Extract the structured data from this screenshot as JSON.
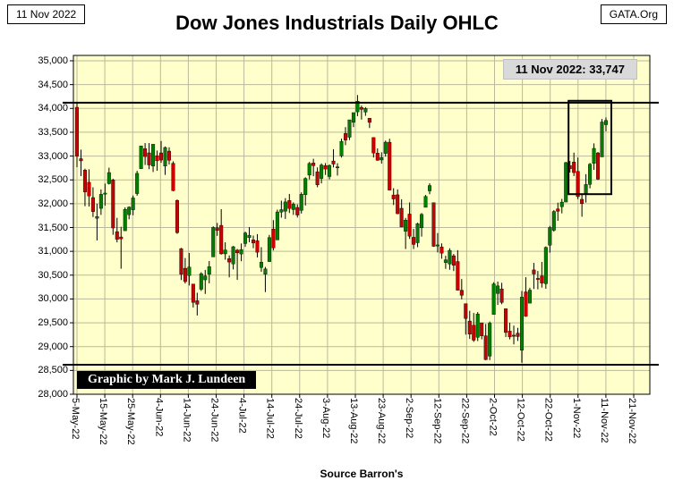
{
  "header": {
    "date_box": "11 Nov 2022",
    "site_box": "GATA.Org"
  },
  "title": "Dow Jones Industrials Daily OHLC",
  "annotation": "11 Nov 2022: 33,747",
  "credit": "Graphic by Mark J. Lundeen",
  "source": "Source Barron's",
  "chart_data": {
    "type": "ohlc-candlestick",
    "title": "Dow Jones Industrials Daily OHLC",
    "ylim": [
      28000,
      35000
    ],
    "y_tick_step": 500,
    "grid": true,
    "plot_bg": "#FFFFCC",
    "up_color": "#008000",
    "down_color": "#CC0000",
    "last_value": 33747,
    "horizontal_lines": [
      34120,
      28620
    ],
    "highlight_box": {
      "start_index": 124,
      "end_index": 132,
      "start_label": "1-Nov-22",
      "end_label": "11-Nov-22",
      "price_low": 32200,
      "price_high": 34160
    },
    "y_tick_labels": [
      "35,000",
      "34,500",
      "34,000",
      "33,500",
      "33,000",
      "32,500",
      "32,000",
      "31,500",
      "31,000",
      "30,500",
      "30,000",
      "29,500",
      "29,000",
      "28,500",
      "28,000"
    ],
    "x_tick_labels": [
      "5-May-22",
      "15-May-22",
      "25-May-22",
      "4-Jun-22",
      "14-Jun-22",
      "24-Jun-22",
      "4-Jul-22",
      "14-Jul-22",
      "24-Jul-22",
      "3-Aug-22",
      "13-Aug-22",
      "23-Aug-22",
      "2-Sep-22",
      "12-Sep-22",
      "22-Sep-22",
      "2-Oct-22",
      "12-Oct-22",
      "22-Oct-22",
      "1-Nov-22",
      "11-Nov-22",
      "21-Nov-22"
    ],
    "ohlc": [
      [
        "5-May-22",
        34024,
        34118,
        32766,
        32998
      ],
      [
        "6-May-22",
        32945,
        33135,
        32580,
        32899
      ],
      [
        "9-May-22",
        32706,
        32735,
        31947,
        32246
      ],
      [
        "10-May-22",
        32450,
        32722,
        31940,
        32161
      ],
      [
        "11-May-22",
        32129,
        32344,
        31720,
        31834
      ],
      [
        "12-May-22",
        31694,
        32000,
        31228,
        31730
      ],
      [
        "13-May-22",
        31902,
        32300,
        31766,
        32197
      ],
      [
        "16-May-22",
        32207,
        32422,
        31959,
        32223
      ],
      [
        "17-May-22",
        32421,
        32757,
        32404,
        32654
      ],
      [
        "18-May-22",
        32500,
        32525,
        31347,
        31490
      ],
      [
        "19-May-22",
        31414,
        31704,
        31188,
        31253
      ],
      [
        "20-May-22",
        31302,
        31516,
        30635,
        31262
      ],
      [
        "23-May-22",
        31432,
        31923,
        31432,
        31880
      ],
      [
        "24-May-22",
        31769,
        31944,
        31673,
        31929
      ],
      [
        "25-May-22",
        31873,
        32172,
        31757,
        32120
      ],
      [
        "26-May-22",
        32212,
        32690,
        32168,
        32637
      ],
      [
        "27-May-22",
        32735,
        33213,
        32735,
        33213
      ],
      [
        "31-May-22",
        33155,
        33272,
        32813,
        32990
      ],
      [
        "1-Jun-22",
        33067,
        33273,
        32724,
        32813
      ],
      [
        "2-Jun-22",
        32790,
        33250,
        32665,
        33248
      ],
      [
        "3-Jun-22",
        33008,
        33115,
        32691,
        32900
      ],
      [
        "6-Jun-22",
        33066,
        33317,
        32859,
        32916
      ],
      [
        "7-Jun-22",
        32790,
        33200,
        32605,
        33180
      ],
      [
        "8-Jun-22",
        33104,
        33185,
        32822,
        32911
      ],
      [
        "9-Jun-22",
        32848,
        32889,
        32260,
        32273
      ],
      [
        "10-Jun-22",
        32069,
        32089,
        31367,
        31393
      ],
      [
        "13-Jun-22",
        31057,
        31071,
        30397,
        30517
      ],
      [
        "14-Jun-22",
        30645,
        30860,
        30324,
        30365
      ],
      [
        "15-Jun-22",
        30492,
        30966,
        30283,
        30669
      ],
      [
        "16-Jun-22",
        30314,
        30314,
        29821,
        29927
      ],
      [
        "17-Jun-22",
        29964,
        30131,
        29653,
        29889
      ],
      [
        "21-Jun-22",
        30204,
        30562,
        30168,
        30530
      ],
      [
        "22-Jun-22",
        30402,
        30610,
        30105,
        30483
      ],
      [
        "23-Jun-22",
        30520,
        30797,
        30328,
        30677
      ],
      [
        "24-Jun-22",
        30883,
        31525,
        30883,
        31501
      ],
      [
        "27-Jun-22",
        31494,
        31596,
        31325,
        31438
      ],
      [
        "28-Jun-22",
        31545,
        31885,
        30932,
        30947
      ],
      [
        "29-Jun-22",
        30947,
        31189,
        30825,
        31029
      ],
      [
        "30-Jun-22",
        30848,
        30915,
        30454,
        30775
      ],
      [
        "1-Jul-22",
        30736,
        31112,
        30620,
        31097
      ],
      [
        "5-Jul-22",
        31024,
        31051,
        30401,
        30968
      ],
      [
        "6-Jul-22",
        30944,
        31165,
        30792,
        31038
      ],
      [
        "7-Jul-22",
        31164,
        31413,
        31094,
        31385
      ],
      [
        "8-Jul-22",
        31287,
        31508,
        31191,
        31338
      ],
      [
        "11-Jul-22",
        31241,
        31331,
        31066,
        31174
      ],
      [
        "12-Jul-22",
        31222,
        31361,
        30872,
        30981
      ],
      [
        "13-Jul-22",
        30661,
        31087,
        30570,
        30773
      ],
      [
        "14-Jul-22",
        30518,
        30672,
        30144,
        30630
      ],
      [
        "15-Jul-22",
        30784,
        31345,
        30784,
        31288
      ],
      [
        "18-Jul-22",
        31468,
        31655,
        31018,
        31072
      ],
      [
        "19-Jul-22",
        31239,
        31876,
        31239,
        31827
      ],
      [
        "20-Jul-22",
        31824,
        32064,
        31706,
        31875
      ],
      [
        "21-Jul-22",
        31844,
        32116,
        31680,
        32037
      ],
      [
        "22-Jul-22",
        32068,
        32205,
        31805,
        31899
      ],
      [
        "25-Jul-22",
        31876,
        32027,
        31765,
        31990
      ],
      [
        "26-Jul-22",
        31922,
        31987,
        31709,
        31762
      ],
      [
        "27-Jul-22",
        31860,
        32238,
        31794,
        32198
      ],
      [
        "28-Jul-22",
        32188,
        32554,
        31961,
        32530
      ],
      [
        "29-Jul-22",
        32600,
        32876,
        32510,
        32845
      ],
      [
        "1-Aug-22",
        32854,
        32943,
        32578,
        32798
      ],
      [
        "2-Aug-22",
        32671,
        32762,
        32346,
        32396
      ],
      [
        "3-Aug-22",
        32530,
        32847,
        32426,
        32812
      ],
      [
        "4-Aug-22",
        32800,
        32853,
        32604,
        32727
      ],
      [
        "5-Aug-22",
        32570,
        32823,
        32511,
        32803
      ],
      [
        "8-Aug-22",
        32897,
        33144,
        32761,
        32832
      ],
      [
        "9-Aug-22",
        32763,
        32851,
        32590,
        32774
      ],
      [
        "10-Aug-22",
        33004,
        33364,
        32969,
        33309
      ],
      [
        "11-Aug-22",
        33474,
        33608,
        33229,
        33336
      ],
      [
        "12-Aug-22",
        33395,
        33761,
        33336,
        33761
      ],
      [
        "15-Aug-22",
        33708,
        33912,
        33607,
        33912
      ],
      [
        "16-Aug-22",
        33928,
        34281,
        33838,
        34152
      ],
      [
        "17-Aug-22",
        34021,
        34060,
        33766,
        33980
      ],
      [
        "18-Aug-22",
        33924,
        34028,
        33845,
        33999
      ],
      [
        "19-Aug-22",
        33796,
        33796,
        33589,
        33707
      ],
      [
        "22-Aug-22",
        33389,
        33389,
        32969,
        33064
      ],
      [
        "23-Aug-22",
        33062,
        33162,
        32902,
        32910
      ],
      [
        "24-Aug-22",
        32918,
        33079,
        32842,
        32969
      ],
      [
        "25-Aug-22",
        33056,
        33324,
        32988,
        33292
      ],
      [
        "26-Aug-22",
        33291,
        33364,
        32283,
        32283
      ],
      [
        "29-Aug-22",
        32183,
        32325,
        31972,
        32099
      ],
      [
        "30-Aug-22",
        32187,
        32301,
        31780,
        31790
      ],
      [
        "31-Aug-22",
        31904,
        32093,
        31510,
        31510
      ],
      [
        "1-Sep-22",
        31421,
        31702,
        31048,
        31656
      ],
      [
        "2-Sep-22",
        31783,
        32027,
        31261,
        31318
      ],
      [
        "6-Sep-22",
        31295,
        31470,
        31048,
        31145
      ],
      [
        "7-Sep-22",
        31181,
        31601,
        31088,
        31581
      ],
      [
        "8-Sep-22",
        31494,
        31804,
        31309,
        31775
      ],
      [
        "9-Sep-22",
        31924,
        32183,
        31924,
        32152
      ],
      [
        "12-Sep-22",
        32269,
        32430,
        32198,
        32381
      ],
      [
        "13-Sep-22",
        32022,
        32022,
        31094,
        31105
      ],
      [
        "14-Sep-22",
        31120,
        31384,
        30977,
        31135
      ],
      [
        "15-Sep-22",
        31093,
        31167,
        30845,
        30962
      ],
      [
        "16-Sep-22",
        30765,
        30907,
        30632,
        30822
      ],
      [
        "19-Sep-22",
        30734,
        31064,
        30613,
        31020
      ],
      [
        "20-Sep-22",
        30907,
        30943,
        30586,
        30706
      ],
      [
        "21-Sep-22",
        30786,
        31025,
        30180,
        30184
      ],
      [
        "22-Sep-22",
        30184,
        30418,
        29993,
        30077
      ],
      [
        "23-Sep-22",
        29902,
        29902,
        29251,
        29590
      ],
      [
        "26-Sep-22",
        29537,
        29752,
        29161,
        29261
      ],
      [
        "27-Sep-22",
        29450,
        29705,
        29100,
        29135
      ],
      [
        "28-Sep-22",
        29195,
        29725,
        29116,
        29684
      ],
      [
        "29-Sep-22",
        29500,
        29500,
        29152,
        29226
      ],
      [
        "30-Sep-22",
        29227,
        29476,
        28716,
        28726
      ],
      [
        "3-Oct-22",
        28800,
        29526,
        28716,
        29491
      ],
      [
        "4-Oct-22",
        29675,
        30351,
        29675,
        30316
      ],
      [
        "5-Oct-22",
        30115,
        30365,
        29876,
        30274
      ],
      [
        "6-Oct-22",
        30211,
        30339,
        29890,
        29927
      ],
      [
        "7-Oct-22",
        29795,
        29795,
        29202,
        29297
      ],
      [
        "10-Oct-22",
        29325,
        29501,
        29152,
        29203
      ],
      [
        "11-Oct-22",
        29240,
        29441,
        29047,
        29239
      ],
      [
        "12-Oct-22",
        29283,
        29394,
        29120,
        29211
      ],
      [
        "13-Oct-22",
        28923,
        30168,
        28661,
        30039
      ],
      [
        "14-Oct-22",
        30149,
        30456,
        29625,
        29635
      ],
      [
        "17-Oct-22",
        29912,
        30236,
        29912,
        30186
      ],
      [
        "18-Oct-22",
        30610,
        30757,
        30209,
        30524
      ],
      [
        "19-Oct-22",
        30432,
        30588,
        30203,
        30424
      ],
      [
        "20-Oct-22",
        30485,
        30778,
        30240,
        30334
      ],
      [
        "21-Oct-22",
        30320,
        31103,
        30214,
        31083
      ],
      [
        "24-Oct-22",
        31130,
        31534,
        30972,
        31500
      ],
      [
        "25-Oct-22",
        31443,
        31864,
        31413,
        31837
      ],
      [
        "26-Oct-22",
        31891,
        32022,
        31640,
        31840
      ],
      [
        "27-Oct-22",
        31937,
        32101,
        31797,
        32033
      ],
      [
        "28-Oct-22",
        32034,
        32879,
        32034,
        32862
      ],
      [
        "31-Oct-22",
        32799,
        32897,
        32654,
        32733
      ],
      [
        "1-Nov-22",
        32875,
        33072,
        32580,
        32653
      ],
      [
        "2-Nov-22",
        32678,
        32970,
        32095,
        32148
      ],
      [
        "3-Nov-22",
        32092,
        32198,
        31727,
        32001
      ],
      [
        "4-Nov-22",
        32218,
        32620,
        32023,
        32403
      ],
      [
        "7-Nov-22",
        32406,
        32855,
        32323,
        32827
      ],
      [
        "8-Nov-22",
        32847,
        33266,
        32710,
        33161
      ],
      [
        "9-Nov-22",
        33066,
        33086,
        32499,
        32514
      ],
      [
        "10-Nov-22",
        32982,
        33778,
        32982,
        33715
      ],
      [
        "11-Nov-22",
        33658,
        33810,
        33520,
        33747
      ]
    ]
  }
}
